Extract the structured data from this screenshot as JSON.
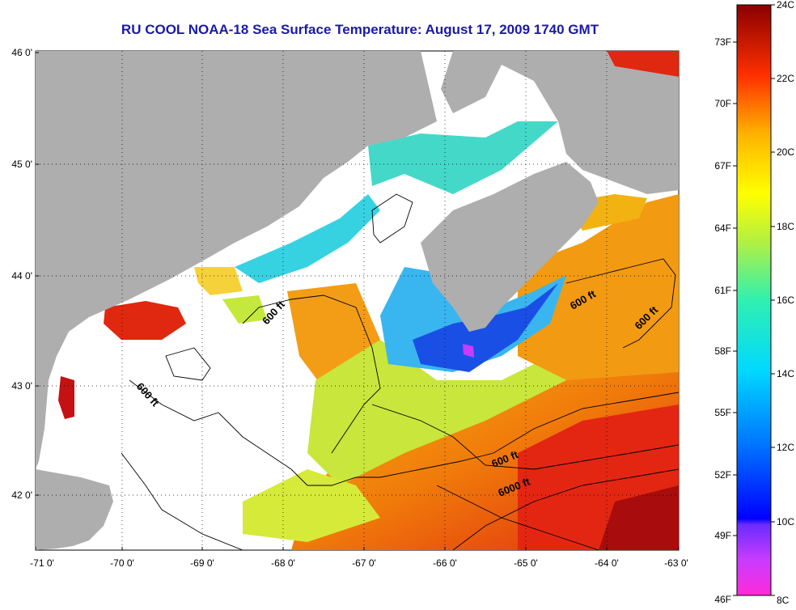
{
  "title": "RU COOL  NOAA-18  Sea Surface Temperature:  August 17, 2009 1740 GMT",
  "map": {
    "lon_range": [
      -71,
      -63
    ],
    "lat_range": [
      41.5,
      46.1
    ],
    "lon_ticks": [
      "-71 0'",
      "-70 0'",
      "-69 0'",
      "-68 0'",
      "-67 0'",
      "-66 0'",
      "-65 0'",
      "-64 0'",
      "-63 0'"
    ],
    "lat_ticks": [
      "46 0'",
      "45 0'",
      "44 0'",
      "43 0'",
      "42 0'"
    ],
    "grid": "dotted",
    "contour_labels": [
      "600 ft",
      "600 ft",
      "600 ft",
      "600 ft",
      "600 ft",
      "6000 ft"
    ],
    "colors": {
      "land": "#aeaeae",
      "cloud": "#ffffff",
      "title": "#1a1aa8"
    }
  },
  "colorbar": {
    "celsius_labels": [
      "24C",
      "22C",
      "20C",
      "18C",
      "16C",
      "14C",
      "12C",
      "10C",
      "8C"
    ],
    "fahrenheit_labels": [
      "73F",
      "70F",
      "67F",
      "64F",
      "61F",
      "58F",
      "55F",
      "52F",
      "49F",
      "46F"
    ],
    "range_c": [
      8,
      24
    ]
  }
}
